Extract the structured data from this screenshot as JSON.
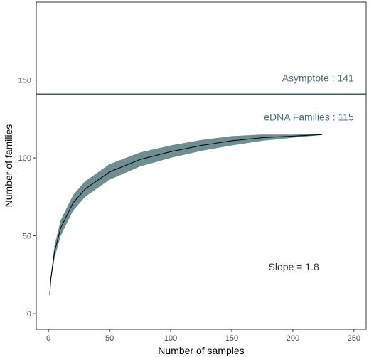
{
  "chart_data": {
    "type": "line",
    "xlabel": "Number of samples",
    "ylabel": "Number of families",
    "xlim": [
      -10,
      260
    ],
    "ylim": [
      -10,
      200
    ],
    "x_ticks": [
      0,
      50,
      100,
      150,
      200,
      250
    ],
    "y_ticks": [
      0,
      50,
      100,
      150
    ],
    "grid": false,
    "series": [
      {
        "name": "",
        "x": [
          1,
          2,
          5,
          10,
          20,
          30,
          50,
          75,
          100,
          125,
          150,
          175,
          200,
          224
        ],
        "y": [
          12,
          23,
          40,
          55,
          71,
          80,
          91,
          99,
          104,
          108,
          111,
          113,
          114,
          115
        ],
        "band_half_width": [
          1,
          2,
          4,
          5,
          5,
          5,
          5,
          4.5,
          4,
          3.5,
          3,
          2,
          1,
          0.3
        ]
      }
    ],
    "asymptote": {
      "value": 141,
      "label": "Asymptote : 141",
      "color": "#3f5f66"
    },
    "annotations": [
      {
        "text": "Asymptote : 141",
        "x": 250,
        "y": 149,
        "color": "#4b6f77"
      },
      {
        "text": "eDNA Families : 115",
        "x": 250,
        "y": 124,
        "color": "#4b6f77"
      },
      {
        "text": "Slope = 1.8",
        "x": 180,
        "y": 28,
        "color": "#333333"
      }
    ],
    "colors": {
      "band": "#6e8e91",
      "line": "#000000",
      "frame": "#333333"
    }
  }
}
